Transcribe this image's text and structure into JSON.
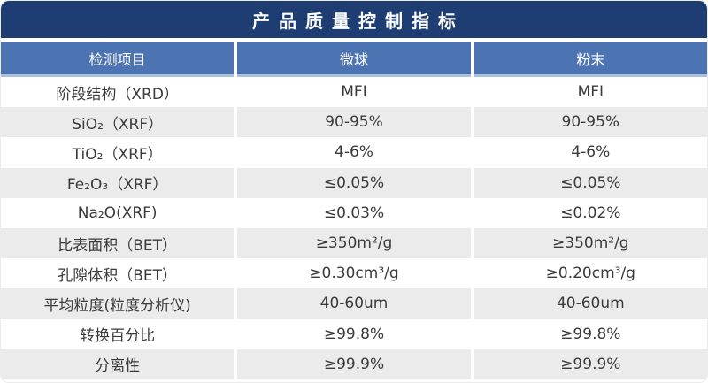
{
  "table": {
    "title": "产品质量控制指标",
    "columns": [
      "检测项目",
      "微球",
      "粉末"
    ],
    "rows": [
      {
        "item": "阶段结构（XRD）",
        "microsphere": "MFI",
        "powder": "MFI"
      },
      {
        "item": "SiO₂（XRF）",
        "microsphere": "90-95%",
        "powder": "90-95%"
      },
      {
        "item": "TiO₂（XRF）",
        "microsphere": "4-6%",
        "powder": "4-6%"
      },
      {
        "item": "Fe₂O₃（XRF）",
        "microsphere": "≤0.05%",
        "powder": "≤0.05%"
      },
      {
        "item": "Na₂O(XRF)",
        "microsphere": "≤0.03%",
        "powder": "≤0.02%"
      },
      {
        "item": "比表面积（BET）",
        "microsphere": "≥350m²/g",
        "powder": "≥350m²/g"
      },
      {
        "item": "孔隙体积（BET）",
        "microsphere": "≥0.30cm³/g",
        "powder": "≥0.20cm³/g"
      },
      {
        "item": "平均粒度(粒度分析仪)",
        "microsphere": "40-60um",
        "powder": "40-60um"
      },
      {
        "item": "转换百分比",
        "microsphere": "≥99.8%",
        "powder": "≥99.8%"
      },
      {
        "item": "分离性",
        "microsphere": "≥99.9%",
        "powder": "≥99.9%"
      }
    ]
  },
  "colors": {
    "title_bar_bg": "#1e3e73",
    "header_bg": "#4d74b2",
    "header_underline": "#a9c0e0",
    "row_alt_bg": "#ebebeb",
    "cell_text": "#3a3a3a"
  }
}
